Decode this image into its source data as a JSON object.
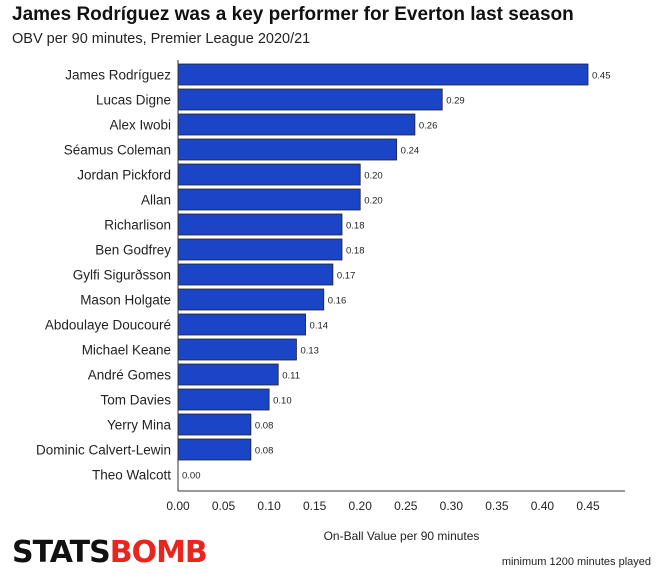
{
  "chart_data": {
    "type": "bar",
    "orientation": "horizontal",
    "title": "James Rodríguez was a key performer for Everton last season",
    "subtitle": "OBV per 90 minutes, Premier League 2020/21",
    "xlabel": "On-Ball Value per 90 minutes",
    "ylabel": "",
    "xlim": [
      0,
      0.45
    ],
    "xticks": [
      "0.00",
      "0.05",
      "0.10",
      "0.15",
      "0.20",
      "0.25",
      "0.30",
      "0.35",
      "0.40",
      "0.45"
    ],
    "categories": [
      "James Rodríguez",
      "Lucas Digne",
      "Alex Iwobi",
      "Séamus Coleman",
      "Jordan Pickford",
      "Allan",
      "Richarlison",
      "Ben Godfrey",
      "Gylfi Sigurðsson",
      "Mason Holgate",
      "Abdoulaye Doucouré",
      "Michael Keane",
      "André Gomes",
      "Tom Davies",
      "Yerry Mina",
      "Dominic Calvert-Lewin",
      "Theo Walcott"
    ],
    "values": [
      0.45,
      0.29,
      0.26,
      0.24,
      0.2,
      0.2,
      0.18,
      0.18,
      0.17,
      0.16,
      0.14,
      0.13,
      0.11,
      0.1,
      0.08,
      0.08,
      0.0
    ],
    "value_labels": [
      "0.45",
      "0.29",
      "0.26",
      "0.24",
      "0.20",
      "0.20",
      "0.18",
      "0.18",
      "0.17",
      "0.16",
      "0.14",
      "0.13",
      "0.11",
      "0.10",
      "0.08",
      "0.08",
      "0.00"
    ],
    "bar_color": "#1a45c6",
    "bar_edge_color": "#222222",
    "grid": false,
    "legend": "none"
  },
  "footer": {
    "logo_part1": "STATS",
    "logo_part2": "BOMB",
    "note": "minimum 1200 minutes played"
  },
  "colors": {
    "logo_black": "#111111",
    "logo_red": "#e8261d"
  }
}
